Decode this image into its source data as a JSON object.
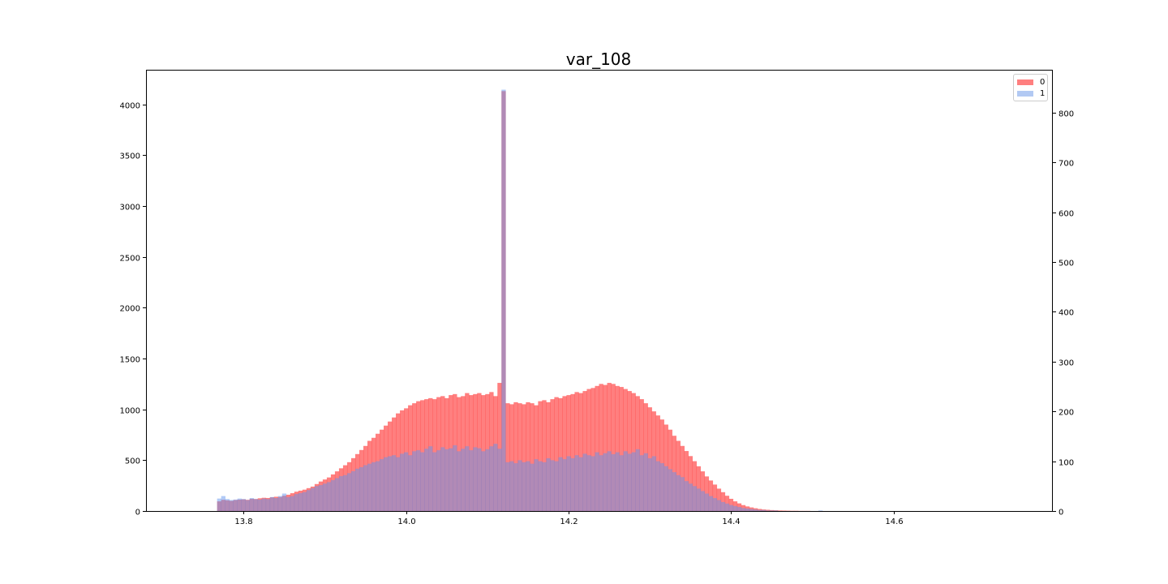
{
  "chart_data": {
    "type": "bar",
    "title": "var_108",
    "xlabel": "",
    "ylabel": "",
    "xlim": [
      13.68,
      14.795
    ],
    "ylim_left": [
      0,
      4340
    ],
    "ylim_right": [
      0,
      886
    ],
    "x_ticks": [
      "13.8",
      "14.0",
      "14.2",
      "14.4",
      "14.6"
    ],
    "x_tick_values": [
      13.8,
      14.0,
      14.2,
      14.4,
      14.6
    ],
    "y_ticks_left": [
      "0",
      "500",
      "1000",
      "1500",
      "2000",
      "2500",
      "3000",
      "3500",
      "4000"
    ],
    "y_ticks_right": [
      "0",
      "100",
      "200",
      "300",
      "400",
      "500",
      "600",
      "700",
      "800"
    ],
    "legend_position": "upper right",
    "bin_start": 13.7675,
    "bin_width": 0.005,
    "series": [
      {
        "name": "0",
        "axis": "left",
        "color": "#ff0000",
        "alpha": 0.5,
        "values": [
          95,
          110,
          105,
          100,
          108,
          112,
          115,
          110,
          120,
          118,
          125,
          130,
          128,
          135,
          140,
          138,
          150,
          160,
          175,
          190,
          200,
          210,
          225,
          240,
          265,
          290,
          310,
          330,
          360,
          390,
          420,
          450,
          480,
          520,
          560,
          600,
          640,
          690,
          720,
          760,
          800,
          840,
          880,
          920,
          960,
          990,
          1010,
          1040,
          1060,
          1080,
          1090,
          1100,
          1110,
          1100,
          1120,
          1130,
          1110,
          1140,
          1150,
          1120,
          1130,
          1160,
          1140,
          1150,
          1160,
          1140,
          1150,
          1170,
          1130,
          1260,
          4130,
          1060,
          1050,
          1070,
          1060,
          1050,
          1070,
          1060,
          1040,
          1080,
          1090,
          1070,
          1100,
          1120,
          1110,
          1130,
          1140,
          1150,
          1170,
          1160,
          1180,
          1200,
          1210,
          1230,
          1250,
          1240,
          1260,
          1250,
          1230,
          1220,
          1200,
          1180,
          1160,
          1130,
          1100,
          1060,
          1020,
          980,
          940,
          900,
          850,
          800,
          740,
          690,
          640,
          590,
          540,
          490,
          440,
          390,
          340,
          300,
          260,
          220,
          185,
          150,
          120,
          95,
          75,
          58,
          45,
          35,
          27,
          20,
          15,
          12,
          9,
          7,
          5,
          4,
          3,
          2,
          2,
          1,
          1,
          1,
          0,
          0,
          0,
          0,
          0,
          0,
          0,
          0,
          0,
          0,
          0,
          0,
          0,
          0,
          0,
          0,
          0,
          0,
          0,
          0,
          0,
          0,
          0,
          0,
          0,
          0,
          0,
          0,
          0,
          0,
          0,
          0,
          0,
          0,
          0,
          0,
          0,
          0,
          0,
          0,
          0,
          0,
          0,
          0,
          0,
          0,
          0
        ]
      },
      {
        "name": "1",
        "axis": "right",
        "color": "#6495ed",
        "alpha": 0.5,
        "values": [
          25,
          30,
          24,
          22,
          23,
          25,
          24,
          22,
          26,
          24,
          23,
          25,
          24,
          28,
          26,
          30,
          35,
          28,
          30,
          34,
          36,
          38,
          42,
          46,
          50,
          52,
          55,
          58,
          62,
          66,
          70,
          72,
          76,
          80,
          85,
          88,
          92,
          95,
          98,
          100,
          104,
          108,
          110,
          112,
          108,
          115,
          118,
          112,
          120,
          122,
          118,
          125,
          130,
          118,
          122,
          128,
          124,
          126,
          132,
          120,
          125,
          130,
          122,
          128,
          126,
          120,
          124,
          130,
          135,
          125,
          846,
          98,
          100,
          96,
          102,
          98,
          100,
          95,
          104,
          100,
          98,
          106,
          102,
          100,
          108,
          104,
          110,
          106,
          112,
          108,
          115,
          112,
          110,
          118,
          112,
          116,
          120,
          114,
          118,
          112,
          120,
          115,
          118,
          124,
          112,
          116,
          106,
          110,
          100,
          96,
          90,
          84,
          78,
          72,
          68,
          60,
          55,
          50,
          45,
          40,
          35,
          30,
          26,
          22,
          18,
          15,
          12,
          10,
          8,
          6,
          5,
          4,
          3,
          2,
          2,
          1,
          1,
          1,
          0,
          0,
          0,
          0,
          0,
          0,
          0,
          0,
          0,
          0,
          1,
          0,
          0,
          0,
          0,
          0,
          0,
          0,
          0,
          0,
          0,
          0,
          0,
          0,
          0,
          0,
          0,
          0,
          0,
          0,
          0,
          0,
          0,
          0,
          0,
          0,
          0,
          0,
          0,
          0,
          0,
          0,
          0,
          0,
          0,
          0,
          0,
          0,
          0,
          0,
          0,
          0,
          0,
          0,
          0,
          0
        ]
      }
    ]
  },
  "legend": {
    "items": [
      {
        "label": "0",
        "color": "#ff7f7f"
      },
      {
        "label": "1",
        "color": "#b2c9f3"
      }
    ]
  }
}
